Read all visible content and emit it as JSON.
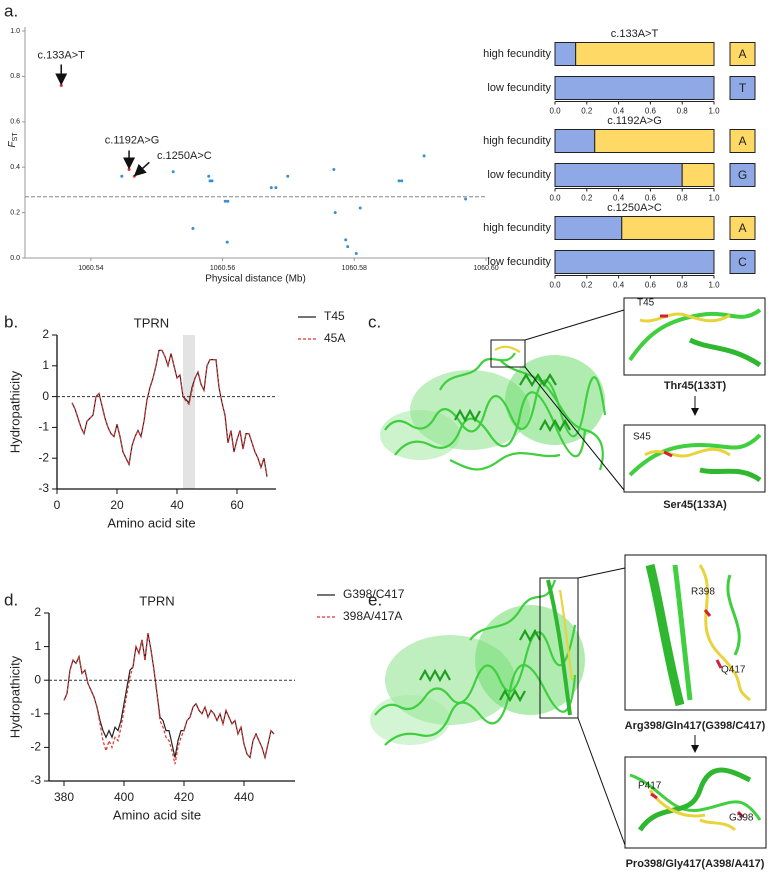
{
  "panel_labels": [
    "a.",
    "b.",
    "c.",
    "d.",
    "e."
  ],
  "structures": {
    "c": {
      "top_label": "T45",
      "top_caption": "Thr45(133T)",
      "bottom_label": "S45",
      "bottom_caption": "Ser45(133A)"
    },
    "e": {
      "top_labels": [
        "R398",
        "Q417"
      ],
      "top_caption": "Arg398/Gln417(G398/C417)",
      "bottom_labels": [
        "P417",
        "G398"
      ],
      "bottom_caption": "Pro398/Gly417(A398/A417)"
    }
  },
  "chart_data": [
    {
      "type": "scatter",
      "x_label": "Physical distance (Mb)",
      "y_label": {
        "main": "F",
        "sub": "ST"
      },
      "xlim": [
        1060.53,
        1060.6
      ],
      "xticks": [
        1060.54,
        1060.56,
        1060.58,
        {
          "value": 1060.6,
          "label": "1060.60"
        }
      ],
      "ylim": [
        0,
        1.0
      ],
      "yticks": [
        {
          "value": 0,
          "label": "0.0"
        },
        0.2,
        0.4,
        0.6,
        0.8,
        {
          "value": 1.0,
          "label": "1.0"
        }
      ],
      "threshold": 0.27,
      "annotations": [
        "c.133A>T",
        "c.1192A>G",
        "c.1250A>C"
      ],
      "series": [
        {
          "color": "#e53030",
          "x": [
            1060.5355,
            1060.5458,
            1060.5466
          ],
          "values": [
            0.76,
            0.39,
            0.36
          ]
        },
        {
          "color": "#3a8fd0",
          "x": [
            1060.5447,
            1060.5525,
            1060.5555,
            1060.5579,
            1060.5581,
            1060.5584,
            1060.5604,
            1060.5608,
            1060.5607,
            1060.5674,
            1060.5681,
            1060.5699,
            1060.5769,
            1060.5771,
            1060.5787,
            1060.579,
            1060.5803,
            1060.5809,
            1060.5868,
            1060.5872,
            1060.5906,
            1060.5969
          ],
          "values": [
            0.36,
            0.38,
            0.13,
            0.36,
            0.34,
            0.34,
            0.25,
            0.25,
            0.07,
            0.31,
            0.31,
            0.36,
            0.39,
            0.2,
            0.08,
            0.05,
            0.02,
            0.22,
            0.34,
            0.34,
            0.45,
            0.26
          ]
        }
      ]
    },
    {
      "type": "stacked_hbar",
      "title": "c.133A>T",
      "categories": [
        "high fecundity",
        "low fecundity"
      ],
      "alleles": [
        "A",
        "T"
      ],
      "xlim": [
        0,
        1.0
      ],
      "xticks": [
        {
          "value": 0,
          "label": "0.0"
        },
        0.2,
        0.4,
        0.6,
        0.8,
        {
          "value": 1.0,
          "label": "1.0"
        }
      ],
      "series": [
        {
          "color": "#8fa8e6",
          "values": [
            0.13,
            1.0
          ]
        },
        {
          "color": "#ffd966",
          "values": [
            0.87,
            0
          ]
        }
      ]
    },
    {
      "type": "stacked_hbar",
      "title": "c.1192A>G",
      "categories": [
        "high fecundity",
        "low fecundity"
      ],
      "alleles": [
        "A",
        "G"
      ],
      "xlim": [
        0,
        1.0
      ],
      "xticks": [
        {
          "value": 0,
          "label": "0.0"
        },
        0.2,
        0.4,
        0.6,
        0.8,
        {
          "value": 1.0,
          "label": "1.0"
        }
      ],
      "series": [
        {
          "color": "#8fa8e6",
          "values": [
            0.25,
            0.8
          ]
        },
        {
          "color": "#ffd966",
          "values": [
            0.75,
            0.2
          ]
        }
      ]
    },
    {
      "type": "stacked_hbar",
      "title": "c.1250A>C",
      "categories": [
        "high fecundity",
        "low fecundity"
      ],
      "alleles": [
        "A",
        "C"
      ],
      "xlim": [
        0,
        1.0
      ],
      "xticks": [
        {
          "value": 0,
          "label": "0.0"
        },
        0.2,
        0.4,
        0.6,
        0.8,
        {
          "value": 1.0,
          "label": "1.0"
        }
      ],
      "series": [
        {
          "color": "#8fa8e6",
          "values": [
            0.42,
            1.0
          ]
        },
        {
          "color": "#ffd966",
          "values": [
            0.58,
            0
          ]
        }
      ]
    },
    {
      "type": "line",
      "title": "TPRN",
      "x_label": "Amino acid site",
      "y_label": "Hydropathicity",
      "xlim": [
        0,
        73
      ],
      "xticks": [
        0,
        20,
        40,
        60
      ],
      "ylim": [
        -3,
        2
      ],
      "yticks": [
        -3,
        -2,
        -1,
        0,
        1,
        2
      ],
      "reference_line": 0,
      "highlight": [
        42,
        46
      ],
      "x": [
        5,
        6,
        7,
        8,
        9,
        10,
        11,
        12,
        13,
        14,
        15,
        16,
        17,
        18,
        19,
        20,
        21,
        22,
        23,
        24,
        25,
        26,
        27,
        28,
        29,
        30,
        31,
        32,
        33,
        34,
        35,
        36,
        37,
        38,
        39,
        40,
        41,
        42,
        43,
        44,
        45,
        46,
        47,
        48,
        49,
        50,
        51,
        52,
        53,
        54,
        55,
        56,
        57,
        58,
        59,
        60,
        61,
        62,
        63,
        64,
        65,
        66,
        67,
        68,
        69,
        70
      ],
      "series": [
        {
          "name": "T45",
          "color": "#222222",
          "dash": false,
          "values": [
            -0.2,
            -0.4,
            -0.7,
            -1.0,
            -1.2,
            -0.8,
            -0.7,
            -0.6,
            0.0,
            0.1,
            -0.3,
            -0.7,
            -1.0,
            -1.2,
            -1.3,
            -0.9,
            -1.3,
            -1.8,
            -2.0,
            -2.2,
            -1.6,
            -1.3,
            -1.1,
            -1.3,
            -0.8,
            -0.1,
            0.3,
            0.6,
            1.0,
            1.5,
            1.5,
            1.3,
            1.0,
            1.4,
            1.0,
            0.6,
            0.7,
            0.0,
            -0.1,
            -0.2,
            0.3,
            0.6,
            0.8,
            0.4,
            0.2,
            1.0,
            1.2,
            1.2,
            1.2,
            0.3,
            -0.2,
            -0.6,
            -1.5,
            -1.1,
            -1.8,
            -1.4,
            -1.1,
            -1.7,
            -1.2,
            -1.2,
            -1.5,
            -1.8,
            -2.0,
            -2.3,
            -2.0,
            -2.6
          ]
        },
        {
          "name": "45A",
          "color": "#e53030",
          "dash": true,
          "values": [
            -0.2,
            -0.4,
            -0.7,
            -1.0,
            -1.2,
            -0.8,
            -0.7,
            -0.6,
            0.0,
            0.1,
            -0.3,
            -0.7,
            -1.0,
            -1.2,
            -1.3,
            -0.9,
            -1.3,
            -1.8,
            -2.0,
            -2.2,
            -1.6,
            -1.3,
            -1.1,
            -1.3,
            -0.8,
            -0.1,
            0.3,
            0.6,
            1.0,
            1.5,
            1.5,
            1.3,
            1.0,
            1.4,
            1.0,
            0.6,
            0.7,
            0.0,
            -0.15,
            -0.25,
            0.2,
            0.6,
            0.8,
            0.4,
            0.2,
            1.0,
            1.2,
            1.2,
            1.2,
            0.3,
            -0.2,
            -0.6,
            -1.5,
            -1.1,
            -1.8,
            -1.4,
            -1.1,
            -1.7,
            -1.2,
            -1.2,
            -1.5,
            -1.8,
            -2.0,
            -2.3,
            -2.0,
            -2.6
          ]
        }
      ]
    },
    {
      "type": "line",
      "title": "TPRN",
      "x_label": "Amino acid site",
      "y_label": "Hydropathicity",
      "xlim": [
        375,
        457
      ],
      "xticks": [
        380,
        400,
        420,
        440
      ],
      "ylim": [
        -3,
        2
      ],
      "yticks": [
        -3,
        -2,
        -1,
        0,
        1,
        2
      ],
      "reference_line": 0,
      "x": [
        380,
        381,
        382,
        383,
        384,
        385,
        386,
        387,
        388,
        389,
        390,
        391,
        392,
        393,
        394,
        395,
        396,
        397,
        398,
        399,
        400,
        401,
        402,
        403,
        404,
        405,
        406,
        407,
        408,
        409,
        410,
        411,
        412,
        413,
        414,
        415,
        416,
        417,
        418,
        419,
        420,
        421,
        422,
        423,
        424,
        425,
        426,
        427,
        428,
        429,
        430,
        431,
        432,
        433,
        434,
        435,
        436,
        437,
        438,
        439,
        440,
        441,
        442,
        443,
        444,
        445,
        446,
        447,
        448,
        449,
        450
      ],
      "series": [
        {
          "name": "G398/C417",
          "color": "#222222",
          "dash": false,
          "values": [
            -0.6,
            -0.4,
            0.3,
            0.6,
            0.5,
            0.7,
            0.2,
            0.3,
            -0.1,
            -0.3,
            -0.5,
            -0.8,
            -1.2,
            -1.5,
            -1.7,
            -1.5,
            -1.7,
            -1.4,
            -1.5,
            -1.2,
            -0.7,
            -0.2,
            0.3,
            0.4,
            1.0,
            0.8,
            1.2,
            0.6,
            1.4,
            0.9,
            0.3,
            -0.4,
            -1.1,
            -1.2,
            -1.5,
            -1.5,
            -1.9,
            -2.3,
            -1.8,
            -1.5,
            -1.5,
            -1.2,
            -1.1,
            -0.8,
            -0.7,
            -0.9,
            -1.0,
            -0.8,
            -1.1,
            -0.9,
            -1.0,
            -1.2,
            -1.0,
            -1.3,
            -0.9,
            -1.1,
            -1.3,
            -1.2,
            -1.6,
            -1.4,
            -1.9,
            -2.2,
            -2.3,
            -1.8,
            -1.6,
            -1.8,
            -2.0,
            -2.3,
            -1.9,
            -1.5,
            -1.6
          ]
        },
        {
          "name": "398A/417A",
          "color": "#e53030",
          "dash": true,
          "values": [
            -0.6,
            -0.4,
            0.3,
            0.6,
            0.5,
            0.7,
            0.2,
            0.3,
            -0.1,
            -0.3,
            -0.5,
            -0.8,
            -1.3,
            -1.8,
            -2.1,
            -1.8,
            -2.0,
            -1.7,
            -1.8,
            -1.4,
            -0.9,
            -0.4,
            0.1,
            0.4,
            1.0,
            0.8,
            1.2,
            0.6,
            1.4,
            0.9,
            0.3,
            -0.4,
            -1.2,
            -1.4,
            -1.7,
            -1.8,
            -2.1,
            -2.5,
            -2.0,
            -1.7,
            -1.5,
            -1.2,
            -1.1,
            -0.8,
            -0.7,
            -0.9,
            -1.0,
            -0.8,
            -1.1,
            -0.9,
            -1.0,
            -1.2,
            -1.0,
            -1.3,
            -0.9,
            -1.1,
            -1.3,
            -1.2,
            -1.6,
            -1.4,
            -1.9,
            -2.2,
            -2.3,
            -1.8,
            -1.6,
            -1.8,
            -2.0,
            -2.3,
            -1.9,
            -1.5,
            -1.6
          ]
        }
      ]
    }
  ]
}
